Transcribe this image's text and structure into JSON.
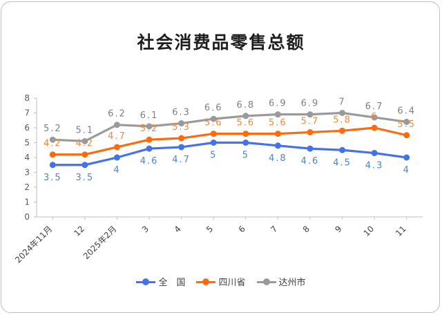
{
  "chart_data": {
    "type": "line",
    "title": "社会消费品零售总额",
    "categories": [
      "2024年11月",
      "12",
      "2025年2月",
      "3",
      "4",
      "5",
      "6",
      "7",
      "8",
      "9",
      "10",
      "11"
    ],
    "ylim": [
      0,
      8
    ],
    "yticks": [
      "0",
      "1",
      "2",
      "3",
      "4",
      "5",
      "6",
      "7",
      "8"
    ],
    "grid": false,
    "legend_position": "bottom",
    "series": [
      {
        "name": "全　国",
        "color": "#4472e8",
        "values": [
          3.5,
          3.5,
          4,
          4.6,
          4.7,
          5,
          5,
          4.8,
          4.6,
          4.5,
          4.3,
          4
        ],
        "labels": [
          "3.5",
          "3.5",
          "4",
          "4.6",
          "4.7",
          "5",
          "5",
          "4.8",
          "4.6",
          "4.5",
          "4.3",
          "4"
        ],
        "label_color": "#4a86c8"
      },
      {
        "name": "四川省",
        "color": "#fd6b0d",
        "values": [
          4.2,
          4.2,
          4.7,
          5.2,
          5.3,
          5.6,
          5.6,
          5.6,
          5.7,
          5.8,
          6,
          5.5
        ],
        "labels": [
          "4.2",
          "4.2",
          "4.7",
          "5.2",
          "5.3",
          "5.6",
          "5.6",
          "5.6",
          "5.7",
          "5.8",
          "6",
          "5.5"
        ],
        "label_color": "#f0883c"
      },
      {
        "name": "达州市",
        "color": "#9a9a9a",
        "values": [
          5.2,
          5.1,
          6.2,
          6.1,
          6.3,
          6.6,
          6.8,
          6.9,
          6.9,
          7,
          6.7,
          6.4
        ],
        "labels": [
          "5.2",
          "5.1",
          "6.2",
          "6.1",
          "6.3",
          "6.6",
          "6.8",
          "6.9",
          "6.9",
          "7",
          "6.7",
          "6.4"
        ],
        "label_color": "#7f7f7f"
      }
    ]
  }
}
